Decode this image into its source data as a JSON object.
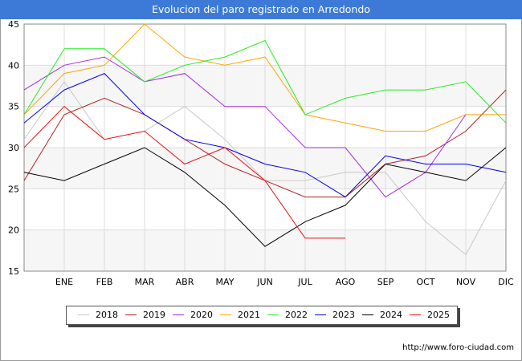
{
  "page": {
    "title": "Evolucion del paro registrado en Arredondo",
    "source": "http://www.foro-ciudad.com"
  },
  "chart_data": {
    "type": "line",
    "title": "Evolucion del paro registrado en Arredondo",
    "xlabel": "",
    "ylabel": "",
    "categories": [
      "",
      "ENE",
      "FEB",
      "MAR",
      "ABR",
      "MAY",
      "JUN",
      "JUL",
      "AGO",
      "SEP",
      "OCT",
      "NOV",
      "DIC"
    ],
    "ylim": [
      15,
      45
    ],
    "yticks": [
      15,
      20,
      25,
      30,
      35,
      40,
      45
    ],
    "grid": true,
    "legend_position": "bottom",
    "series": [
      {
        "name": "2018",
        "color": "#c8c8c8",
        "values": [
          31,
          38,
          31,
          32,
          35,
          31,
          26,
          26,
          27,
          27,
          21,
          17,
          26
        ]
      },
      {
        "name": "2019",
        "color": "#b22222",
        "values": [
          26,
          34,
          36,
          34,
          31,
          28,
          26,
          24,
          24,
          28,
          29,
          32,
          37
        ]
      },
      {
        "name": "2020",
        "color": "#a52ae6",
        "values": [
          37,
          40,
          41,
          38,
          39,
          35,
          35,
          30,
          30,
          24,
          27,
          34,
          null
        ]
      },
      {
        "name": "2021",
        "color": "#ffa500",
        "values": [
          34,
          39,
          40,
          45,
          41,
          40,
          41,
          34,
          33,
          32,
          32,
          34,
          34
        ]
      },
      {
        "name": "2022",
        "color": "#22ee22",
        "values": [
          34,
          42,
          42,
          38,
          40,
          41,
          43,
          34,
          36,
          37,
          37,
          38,
          33
        ]
      },
      {
        "name": "2023",
        "color": "#0000ee",
        "values": [
          33,
          37,
          39,
          34,
          31,
          30,
          28,
          27,
          24,
          29,
          28,
          28,
          27
        ]
      },
      {
        "name": "2024",
        "color": "#000000",
        "values": [
          27,
          26,
          28,
          30,
          27,
          23,
          18,
          21,
          23,
          28,
          27,
          26,
          30
        ]
      },
      {
        "name": "2025",
        "color": "#ee1111",
        "values": [
          30,
          35,
          31,
          32,
          28,
          30,
          26,
          19,
          19,
          null,
          null,
          null,
          null
        ]
      }
    ]
  }
}
